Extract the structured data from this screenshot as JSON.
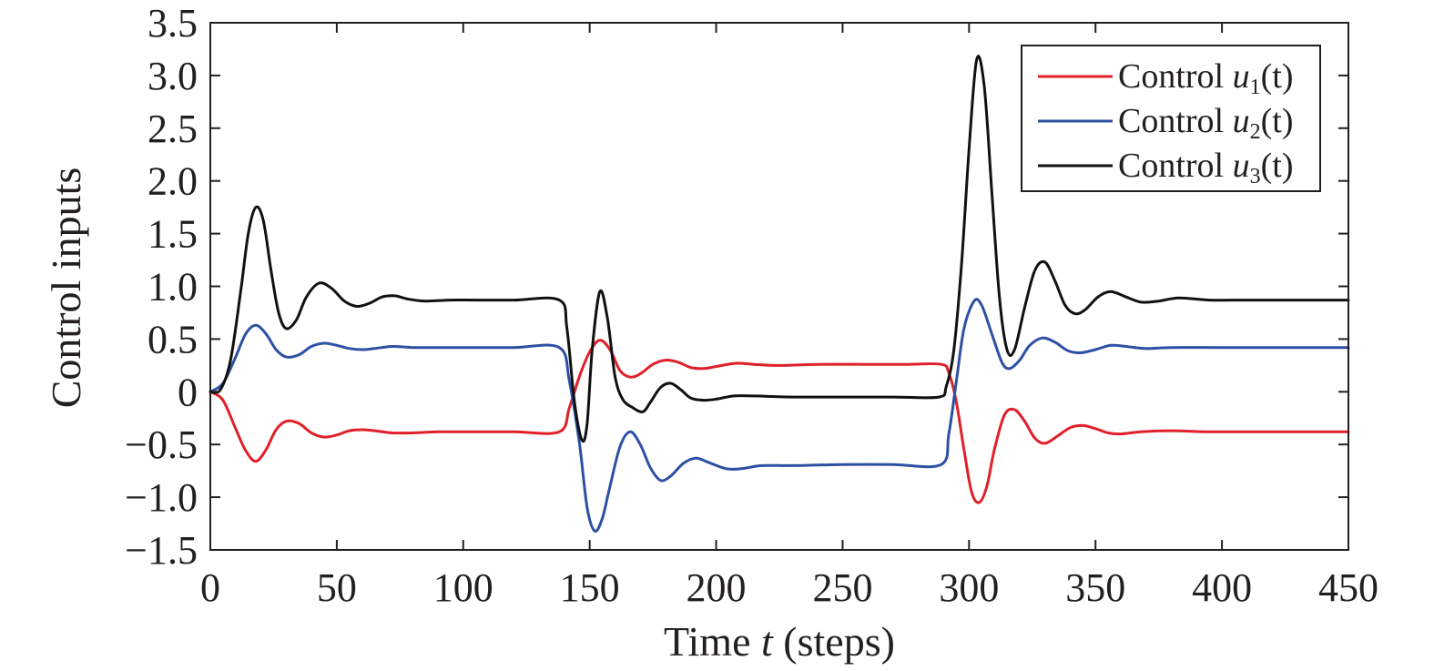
{
  "chart_data": {
    "type": "line",
    "xlabel": {
      "prefix": "Time ",
      "italic": "t",
      "suffix": " (steps)"
    },
    "ylabel": "Control inputs",
    "xlim": [
      0,
      450
    ],
    "ylim": [
      -1.5,
      3.5
    ],
    "x_ticks": [
      0,
      50,
      100,
      150,
      200,
      250,
      300,
      350,
      400,
      450
    ],
    "x_tick_labels": [
      "0",
      "50",
      "100",
      "150",
      "200",
      "250",
      "300",
      "350",
      "400",
      "450"
    ],
    "y_ticks": [
      -1.5,
      -1.0,
      -0.5,
      0,
      0.5,
      1.0,
      1.5,
      2.0,
      2.5,
      3.0,
      3.5
    ],
    "y_tick_labels": [
      "−1.5",
      "−1.0",
      "−0.5",
      "0",
      "0.5",
      "1.0",
      "1.5",
      "2.0",
      "2.5",
      "3.0",
      "3.5"
    ],
    "grid": false,
    "legend_position": "top-right",
    "series": [
      {
        "name": "Control u1(t)",
        "legend": {
          "prefix": "Control ",
          "var": "u",
          "sub": "1",
          "suffix": "(t)"
        },
        "color": "#e0202a",
        "points": [
          [
            0,
            0
          ],
          [
            5,
            -0.08
          ],
          [
            10,
            -0.35
          ],
          [
            14,
            -0.56
          ],
          [
            18,
            -0.66
          ],
          [
            22,
            -0.55
          ],
          [
            26,
            -0.36
          ],
          [
            30,
            -0.28
          ],
          [
            35,
            -0.3
          ],
          [
            40,
            -0.39
          ],
          [
            45,
            -0.43
          ],
          [
            50,
            -0.41
          ],
          [
            55,
            -0.37
          ],
          [
            60,
            -0.36
          ],
          [
            65,
            -0.37
          ],
          [
            72,
            -0.39
          ],
          [
            80,
            -0.39
          ],
          [
            90,
            -0.38
          ],
          [
            100,
            -0.38
          ],
          [
            120,
            -0.38
          ],
          [
            138,
            -0.38
          ],
          [
            142,
            -0.15
          ],
          [
            146,
            0.15
          ],
          [
            150,
            0.38
          ],
          [
            154,
            0.49
          ],
          [
            158,
            0.4
          ],
          [
            162,
            0.2
          ],
          [
            166,
            0.14
          ],
          [
            170,
            0.17
          ],
          [
            175,
            0.26
          ],
          [
            180,
            0.3
          ],
          [
            185,
            0.28
          ],
          [
            190,
            0.23
          ],
          [
            195,
            0.22
          ],
          [
            200,
            0.24
          ],
          [
            208,
            0.27
          ],
          [
            215,
            0.26
          ],
          [
            225,
            0.25
          ],
          [
            240,
            0.26
          ],
          [
            260,
            0.26
          ],
          [
            275,
            0.26
          ],
          [
            289,
            0.26
          ],
          [
            292,
            0.18
          ],
          [
            295,
            -0.1
          ],
          [
            298,
            -0.55
          ],
          [
            301,
            -0.95
          ],
          [
            304,
            -1.05
          ],
          [
            307,
            -0.9
          ],
          [
            310,
            -0.55
          ],
          [
            314,
            -0.22
          ],
          [
            318,
            -0.17
          ],
          [
            322,
            -0.28
          ],
          [
            326,
            -0.44
          ],
          [
            330,
            -0.49
          ],
          [
            335,
            -0.42
          ],
          [
            340,
            -0.34
          ],
          [
            345,
            -0.32
          ],
          [
            350,
            -0.35
          ],
          [
            355,
            -0.39
          ],
          [
            360,
            -0.4
          ],
          [
            368,
            -0.38
          ],
          [
            380,
            -0.37
          ],
          [
            395,
            -0.38
          ],
          [
            420,
            -0.38
          ],
          [
            450,
            -0.38
          ]
        ]
      },
      {
        "name": "Control u2(t)",
        "legend": {
          "prefix": "Control ",
          "var": "u",
          "sub": "2",
          "suffix": "(t)"
        },
        "color": "#2e4fa3",
        "points": [
          [
            0,
            0
          ],
          [
            5,
            0.08
          ],
          [
            10,
            0.33
          ],
          [
            14,
            0.55
          ],
          [
            18,
            0.63
          ],
          [
            22,
            0.55
          ],
          [
            26,
            0.4
          ],
          [
            30,
            0.33
          ],
          [
            35,
            0.35
          ],
          [
            40,
            0.43
          ],
          [
            45,
            0.46
          ],
          [
            50,
            0.44
          ],
          [
            55,
            0.41
          ],
          [
            60,
            0.4
          ],
          [
            65,
            0.41
          ],
          [
            72,
            0.43
          ],
          [
            80,
            0.42
          ],
          [
            90,
            0.42
          ],
          [
            100,
            0.42
          ],
          [
            120,
            0.42
          ],
          [
            138,
            0.42
          ],
          [
            142,
            0.1
          ],
          [
            146,
            -0.5
          ],
          [
            149,
            -1.1
          ],
          [
            152,
            -1.32
          ],
          [
            155,
            -1.2
          ],
          [
            158,
            -0.9
          ],
          [
            162,
            -0.52
          ],
          [
            166,
            -0.38
          ],
          [
            170,
            -0.5
          ],
          [
            174,
            -0.72
          ],
          [
            178,
            -0.84
          ],
          [
            182,
            -0.8
          ],
          [
            187,
            -0.68
          ],
          [
            192,
            -0.63
          ],
          [
            197,
            -0.67
          ],
          [
            204,
            -0.73
          ],
          [
            210,
            -0.73
          ],
          [
            218,
            -0.7
          ],
          [
            230,
            -0.7
          ],
          [
            250,
            -0.69
          ],
          [
            270,
            -0.69
          ],
          [
            289,
            -0.69
          ],
          [
            292,
            -0.4
          ],
          [
            295,
            0.1
          ],
          [
            298,
            0.6
          ],
          [
            302,
            0.86
          ],
          [
            305,
            0.82
          ],
          [
            309,
            0.55
          ],
          [
            313,
            0.28
          ],
          [
            316,
            0.22
          ],
          [
            320,
            0.3
          ],
          [
            324,
            0.44
          ],
          [
            329,
            0.51
          ],
          [
            334,
            0.47
          ],
          [
            339,
            0.39
          ],
          [
            344,
            0.37
          ],
          [
            350,
            0.4
          ],
          [
            356,
            0.44
          ],
          [
            362,
            0.43
          ],
          [
            370,
            0.41
          ],
          [
            380,
            0.42
          ],
          [
            400,
            0.42
          ],
          [
            430,
            0.42
          ],
          [
            450,
            0.42
          ]
        ]
      },
      {
        "name": "Control u3(t)",
        "legend": {
          "prefix": "Control ",
          "var": "u",
          "sub": "3",
          "suffix": "(t)"
        },
        "color": "#111111",
        "points": [
          [
            0,
            0
          ],
          [
            4,
            0.02
          ],
          [
            8,
            0.3
          ],
          [
            12,
            0.95
          ],
          [
            15,
            1.5
          ],
          [
            18,
            1.75
          ],
          [
            21,
            1.62
          ],
          [
            24,
            1.15
          ],
          [
            27,
            0.75
          ],
          [
            30,
            0.6
          ],
          [
            34,
            0.68
          ],
          [
            38,
            0.9
          ],
          [
            43,
            1.03
          ],
          [
            48,
            0.98
          ],
          [
            53,
            0.86
          ],
          [
            58,
            0.81
          ],
          [
            63,
            0.84
          ],
          [
            68,
            0.9
          ],
          [
            73,
            0.91
          ],
          [
            78,
            0.88
          ],
          [
            85,
            0.86
          ],
          [
            95,
            0.87
          ],
          [
            105,
            0.87
          ],
          [
            120,
            0.87
          ],
          [
            138,
            0.87
          ],
          [
            141,
            0.6
          ],
          [
            144,
            -0.1
          ],
          [
            147,
            -0.46
          ],
          [
            149,
            -0.3
          ],
          [
            151,
            0.4
          ],
          [
            154,
            0.95
          ],
          [
            157,
            0.7
          ],
          [
            160,
            0.15
          ],
          [
            163,
            -0.07
          ],
          [
            167,
            -0.15
          ],
          [
            171,
            -0.19
          ],
          [
            174,
            -0.1
          ],
          [
            178,
            0.04
          ],
          [
            182,
            0.08
          ],
          [
            186,
            0.02
          ],
          [
            190,
            -0.06
          ],
          [
            195,
            -0.08
          ],
          [
            200,
            -0.07
          ],
          [
            207,
            -0.04
          ],
          [
            215,
            -0.04
          ],
          [
            230,
            -0.05
          ],
          [
            250,
            -0.05
          ],
          [
            270,
            -0.05
          ],
          [
            288,
            -0.05
          ],
          [
            291,
            0.05
          ],
          [
            294,
            0.4
          ],
          [
            297,
            1.2
          ],
          [
            300,
            2.3
          ],
          [
            303,
            3.15
          ],
          [
            306,
            2.9
          ],
          [
            309,
            1.9
          ],
          [
            312,
            0.9
          ],
          [
            315,
            0.4
          ],
          [
            318,
            0.4
          ],
          [
            322,
            0.8
          ],
          [
            326,
            1.15
          ],
          [
            330,
            1.23
          ],
          [
            334,
            1.05
          ],
          [
            338,
            0.82
          ],
          [
            342,
            0.74
          ],
          [
            346,
            0.78
          ],
          [
            351,
            0.9
          ],
          [
            356,
            0.95
          ],
          [
            362,
            0.9
          ],
          [
            368,
            0.85
          ],
          [
            375,
            0.86
          ],
          [
            383,
            0.89
          ],
          [
            395,
            0.87
          ],
          [
            410,
            0.87
          ],
          [
            430,
            0.87
          ],
          [
            450,
            0.87
          ]
        ]
      }
    ]
  }
}
